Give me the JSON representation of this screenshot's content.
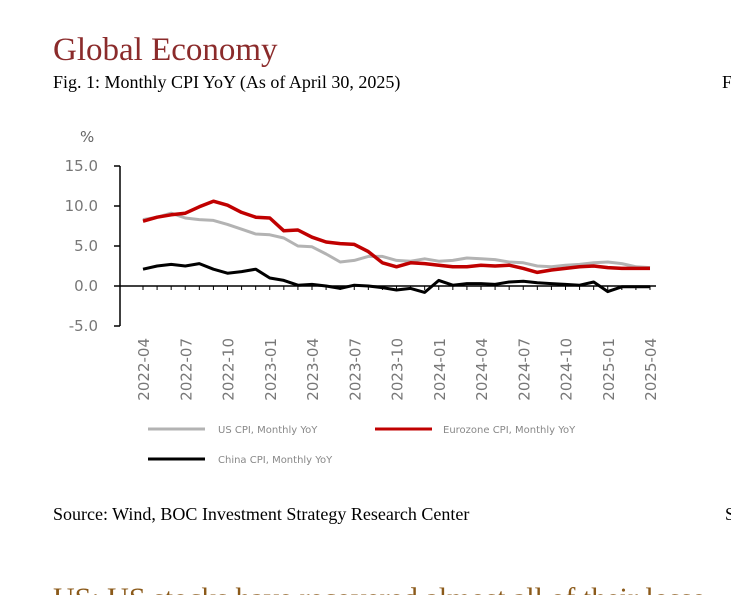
{
  "heading": "Global Economy",
  "figure_caption": "Fig. 1: Monthly CPI YoY (As of April 30, 2025)",
  "source": "Source: Wind, BOC Investment Strategy Research Center",
  "next_heading": "US: US stocks have recovered almost all of their losse",
  "right_column": {
    "caption": "F",
    "source": "S"
  },
  "chart_data": {
    "type": "line",
    "y_label": "%",
    "categories": [
      "2022-04",
      null,
      null,
      "2022-07",
      null,
      null,
      "2022-10",
      null,
      null,
      "2023-01",
      null,
      null,
      "2023-04",
      null,
      null,
      "2023-07",
      null,
      null,
      "2023-10",
      null,
      null,
      "2024-01",
      null,
      null,
      "2024-04",
      null,
      null,
      "2024-07",
      null,
      null,
      "2024-10",
      null,
      null,
      "2025-01",
      null,
      null,
      "2025-04"
    ],
    "series": [
      {
        "name": "US CPI, Monthly YoY",
        "color": "#b3b3b3",
        "values": [
          8.3,
          8.6,
          9.1,
          8.5,
          8.3,
          8.2,
          7.7,
          7.1,
          6.5,
          6.4,
          6.0,
          5.0,
          4.9,
          4.0,
          3.0,
          3.2,
          3.7,
          3.7,
          3.2,
          3.1,
          3.4,
          3.1,
          3.2,
          3.5,
          3.4,
          3.3,
          3.0,
          2.9,
          2.5,
          2.4,
          2.6,
          2.7,
          2.9,
          3.0,
          2.8,
          2.4,
          2.3
        ]
      },
      {
        "name": "Eurozone CPI, Monthly YoY",
        "color": "#c00000",
        "values": [
          8.1,
          8.6,
          8.9,
          9.1,
          9.9,
          10.6,
          10.1,
          9.2,
          8.6,
          8.5,
          6.9,
          7.0,
          6.1,
          5.5,
          5.3,
          5.2,
          4.3,
          2.9,
          2.4,
          2.9,
          2.8,
          2.6,
          2.4,
          2.4,
          2.6,
          2.5,
          2.6,
          2.2,
          1.7,
          2.0,
          2.2,
          2.4,
          2.5,
          2.3,
          2.2,
          2.2,
          2.2
        ]
      },
      {
        "name": "China CPI, Monthly YoY",
        "color": "#000000",
        "values": [
          2.1,
          2.5,
          2.7,
          2.5,
          2.8,
          2.1,
          1.6,
          1.8,
          2.1,
          1.0,
          0.7,
          0.1,
          0.2,
          0.0,
          -0.3,
          0.1,
          0.0,
          -0.2,
          -0.5,
          -0.3,
          -0.8,
          0.7,
          0.1,
          0.3,
          0.3,
          0.2,
          0.5,
          0.6,
          0.4,
          0.3,
          0.2,
          0.1,
          0.5,
          -0.7,
          -0.1,
          -0.1,
          -0.1
        ]
      }
    ],
    "ylim": [
      -5,
      15
    ],
    "yticks": [
      {
        "value": -5,
        "label": "-5.0"
      },
      {
        "value": 0,
        "label": "0.0"
      },
      {
        "value": 5,
        "label": "5.0"
      },
      {
        "value": 10,
        "label": "10.0"
      },
      {
        "value": 15,
        "label": "15.0"
      }
    ]
  }
}
